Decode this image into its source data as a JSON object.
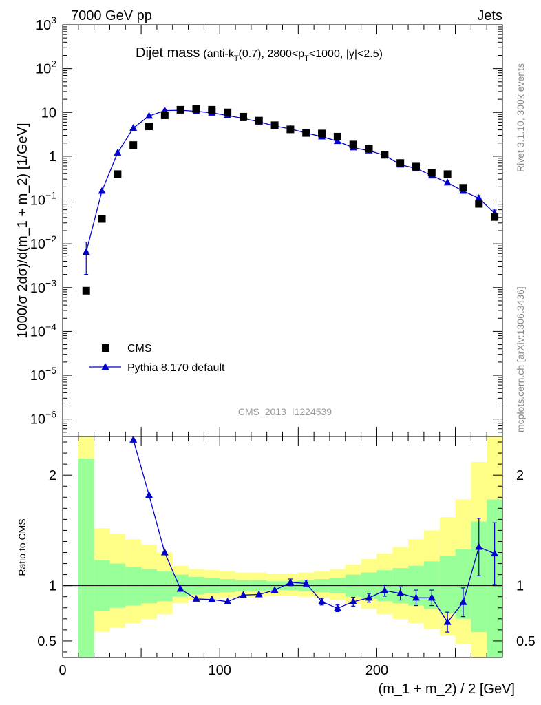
{
  "header": {
    "energy_label": "7000 GeV pp",
    "category_label": "Jets"
  },
  "side_text": {
    "rivet": "Rivet 3.1.10,  300k events",
    "mcplots": "mcplots.cern.ch [arXiv:1306.3436]"
  },
  "analysis_id": "CMS_2013_I1224539",
  "colors": {
    "mc": "#0000cc",
    "band_inner": "#99ff99",
    "band_outer": "#ffff88",
    "data": "#000000"
  },
  "chart_data": [
    {
      "type": "scatter",
      "title": "Dijet mass",
      "subtitle": {
        "prefix": "(anti-k",
        "sub1": "T",
        "mid": "(0.7), 2800<p",
        "sub2": "T",
        "suffix": "<1000, |y|<2.5)"
      },
      "ylabel": "1000/σ 2dσ)/d(m_1 + m_2) [1/GeV]",
      "yscale": "log",
      "ylim": [
        4e-07,
        1000
      ],
      "xlim": [
        0,
        280
      ],
      "yticks": [
        {
          "v": 1e-06,
          "base": "10",
          "exp": "−6"
        },
        {
          "v": 1e-05,
          "base": "10",
          "exp": "−5"
        },
        {
          "v": 0.0001,
          "base": "10",
          "exp": "−4"
        },
        {
          "v": 0.001,
          "base": "10",
          "exp": "−3"
        },
        {
          "v": 0.01,
          "base": "10",
          "exp": "−2"
        },
        {
          "v": 0.1,
          "base": "10",
          "exp": "−1"
        },
        {
          "v": 1,
          "base": "1",
          "exp": ""
        },
        {
          "v": 10,
          "base": "10",
          "exp": ""
        },
        {
          "v": 100,
          "base": "10",
          "exp": "2"
        },
        {
          "v": 1000,
          "base": "10",
          "exp": "3"
        }
      ],
      "legend": {
        "position": "bottom-left",
        "entries": [
          "CMS",
          "Pythia 8.170 default"
        ]
      },
      "x": [
        15,
        25,
        35,
        45,
        55,
        65,
        75,
        85,
        95,
        105,
        115,
        125,
        135,
        145,
        155,
        165,
        175,
        185,
        195,
        205,
        215,
        225,
        235,
        245,
        255,
        265,
        275
      ],
      "series": [
        {
          "name": "CMS",
          "values": [
            0.00085,
            0.037,
            0.39,
            1.8,
            4.8,
            8.6,
            11.5,
            12.0,
            11.5,
            10.0,
            8.0,
            6.5,
            5.1,
            4.1,
            3.4,
            3.3,
            2.8,
            1.85,
            1.5,
            1.08,
            0.7,
            0.58,
            0.42,
            0.39,
            0.19,
            0.082,
            0.041
          ]
        },
        {
          "name": "Pythia 8.170 default",
          "values": [
            0.0065,
            0.16,
            1.2,
            4.4,
            8.3,
            11.0,
            11.2,
            10.6,
            9.8,
            8.5,
            7.3,
            6.1,
            4.9,
            4.2,
            3.4,
            2.8,
            2.2,
            1.57,
            1.34,
            1.05,
            0.64,
            0.53,
            0.36,
            0.25,
            0.16,
            0.11,
            0.05
          ],
          "err_low": [
            0.0045,
            0,
            0,
            0,
            0,
            0,
            0,
            0,
            0,
            0,
            0,
            0,
            0,
            0,
            0,
            0,
            0,
            0,
            0,
            0,
            0,
            0,
            0,
            0,
            0,
            0.015,
            0.009
          ],
          "err_high": [
            0.0045,
            0,
            0,
            0,
            0,
            0,
            0,
            0,
            0,
            0,
            0,
            0,
            0,
            0,
            0,
            0,
            0,
            0,
            0,
            0,
            0,
            0,
            0,
            0,
            0,
            0.015,
            0.009
          ]
        }
      ]
    },
    {
      "type": "line",
      "ylabel": "Ratio to CMS",
      "xlabel": "(m_1 + m_2) / 2 [GeV]",
      "xlim": [
        0,
        280
      ],
      "ylim": [
        0.35,
        2.35
      ],
      "yticks": [
        0.5,
        1,
        2
      ],
      "xticks": [
        0,
        100,
        200
      ],
      "reference_line": 1,
      "band_edges": [
        10,
        20,
        30,
        40,
        50,
        60,
        70,
        80,
        90,
        100,
        110,
        120,
        130,
        140,
        150,
        160,
        170,
        180,
        190,
        200,
        210,
        220,
        230,
        240,
        250,
        260,
        270,
        280
      ],
      "band_inner": {
        "low": [
          0.35,
          0.77,
          0.8,
          0.82,
          0.84,
          0.86,
          0.9,
          0.92,
          0.93,
          0.94,
          0.95,
          0.95,
          0.96,
          0.96,
          0.95,
          0.94,
          0.93,
          0.9,
          0.88,
          0.86,
          0.84,
          0.82,
          0.79,
          0.75,
          0.7,
          0.58,
          0.35
        ],
        "high": [
          2.15,
          1.23,
          1.2,
          1.17,
          1.15,
          1.13,
          1.1,
          1.08,
          1.07,
          1.06,
          1.05,
          1.05,
          1.04,
          1.04,
          1.05,
          1.06,
          1.07,
          1.1,
          1.12,
          1.14,
          1.16,
          1.18,
          1.22,
          1.27,
          1.33,
          1.58,
          1.78
        ]
      },
      "band_outer": {
        "low": [
          0.35,
          0.58,
          0.62,
          0.66,
          0.7,
          0.74,
          0.84,
          0.87,
          0.88,
          0.89,
          0.9,
          0.9,
          0.91,
          0.91,
          0.9,
          0.89,
          0.87,
          0.83,
          0.79,
          0.74,
          0.7,
          0.66,
          0.61,
          0.55,
          0.47,
          0.35,
          0.35
        ],
        "high": [
          2.35,
          1.52,
          1.47,
          1.42,
          1.37,
          1.3,
          1.18,
          1.15,
          1.14,
          1.13,
          1.12,
          1.12,
          1.11,
          1.11,
          1.12,
          1.13,
          1.15,
          1.19,
          1.24,
          1.29,
          1.35,
          1.42,
          1.5,
          1.62,
          1.78,
          2.12,
          2.35
        ]
      },
      "x": [
        45,
        55,
        65,
        75,
        85,
        95,
        105,
        115,
        125,
        135,
        145,
        155,
        165,
        175,
        185,
        195,
        205,
        215,
        225,
        235,
        245,
        255,
        265,
        275
      ],
      "series": [
        {
          "name": "Pythia 8.170 default",
          "values": [
            2.32,
            1.82,
            1.3,
            0.97,
            0.88,
            0.875,
            0.855,
            0.915,
            0.92,
            0.96,
            1.03,
            1.02,
            0.855,
            0.795,
            0.855,
            0.89,
            0.955,
            0.93,
            0.89,
            0.89,
            0.67,
            0.85,
            1.35,
            1.29
          ],
          "err": [
            0,
            0,
            0,
            0,
            0,
            0,
            0,
            0,
            0,
            0,
            0.03,
            0.03,
            0.03,
            0.03,
            0.04,
            0.04,
            0.05,
            0.06,
            0.07,
            0.07,
            0.09,
            0.13,
            0.26,
            0.28
          ]
        }
      ]
    }
  ]
}
